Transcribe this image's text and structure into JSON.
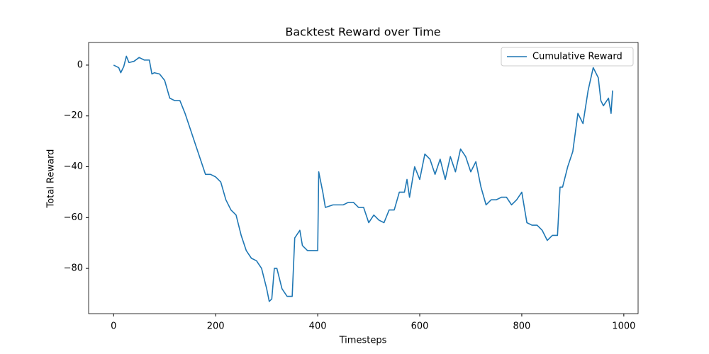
{
  "chart_data": {
    "type": "line",
    "title": "Backtest Reward over Time",
    "x_label": "Timesteps",
    "y_label": "Total Reward",
    "x": [
      0,
      10,
      14,
      20,
      25,
      30,
      40,
      50,
      60,
      70,
      75,
      80,
      90,
      100,
      110,
      120,
      130,
      140,
      150,
      160,
      170,
      180,
      190,
      200,
      210,
      220,
      230,
      240,
      250,
      260,
      270,
      280,
      290,
      300,
      305,
      310,
      315,
      320,
      330,
      340,
      350,
      355,
      365,
      370,
      380,
      390,
      400,
      402,
      410,
      415,
      430,
      450,
      460,
      470,
      480,
      490,
      500,
      510,
      520,
      530,
      540,
      550,
      560,
      570,
      575,
      580,
      590,
      600,
      610,
      620,
      630,
      640,
      650,
      660,
      670,
      680,
      690,
      700,
      710,
      720,
      730,
      740,
      750,
      760,
      770,
      780,
      790,
      800,
      810,
      820,
      830,
      840,
      850,
      860,
      870,
      875,
      880,
      890,
      900,
      910,
      920,
      930,
      940,
      950,
      955,
      960,
      970,
      975,
      978
    ],
    "series": [
      {
        "name": "Cumulative Reward",
        "color": "#1f77b4",
        "values": [
          0,
          -1,
          -3,
          -0.5,
          3.5,
          1,
          1.5,
          3,
          2,
          2,
          -3.5,
          -3,
          -3.5,
          -6,
          -13,
          -14,
          -14,
          -19,
          -25,
          -31,
          -37,
          -43,
          -43,
          -44,
          -46,
          -53,
          -57,
          -59,
          -67,
          -73,
          -76,
          -77,
          -80,
          -88,
          -93,
          -92,
          -80,
          -80,
          -88,
          -91,
          -91,
          -68,
          -65,
          -71,
          -73,
          -73,
          -73,
          -42,
          -50,
          -56,
          -55,
          -55,
          -54,
          -54,
          -56,
          -56,
          -62,
          -59,
          -61,
          -62,
          -57,
          -57,
          -50,
          -50,
          -45,
          -52,
          -40,
          -45,
          -35,
          -37,
          -43,
          -37,
          -45,
          -36,
          -42,
          -33,
          -36,
          -42,
          -38,
          -48,
          -55,
          -53,
          -53,
          -52,
          -52,
          -55,
          -53,
          -50,
          -62,
          -63,
          -63,
          -65,
          -69,
          -67,
          -67,
          -48,
          -48,
          -40,
          -34,
          -19,
          -23,
          -10,
          -1,
          -5,
          -14,
          -16,
          -13,
          -19,
          -10
        ]
      }
    ],
    "xlim": [
      -49,
      1028
    ],
    "ylim": [
      -97.8,
      8.9
    ],
    "xticks": [
      0,
      200,
      400,
      600,
      800,
      1000
    ],
    "yticks": [
      {
        "value": -80,
        "label": "−80"
      },
      {
        "value": -60,
        "label": "−60"
      },
      {
        "value": -40,
        "label": "−40"
      },
      {
        "value": -20,
        "label": "−20"
      },
      0
    ],
    "grid": false,
    "legend": "upper right"
  }
}
